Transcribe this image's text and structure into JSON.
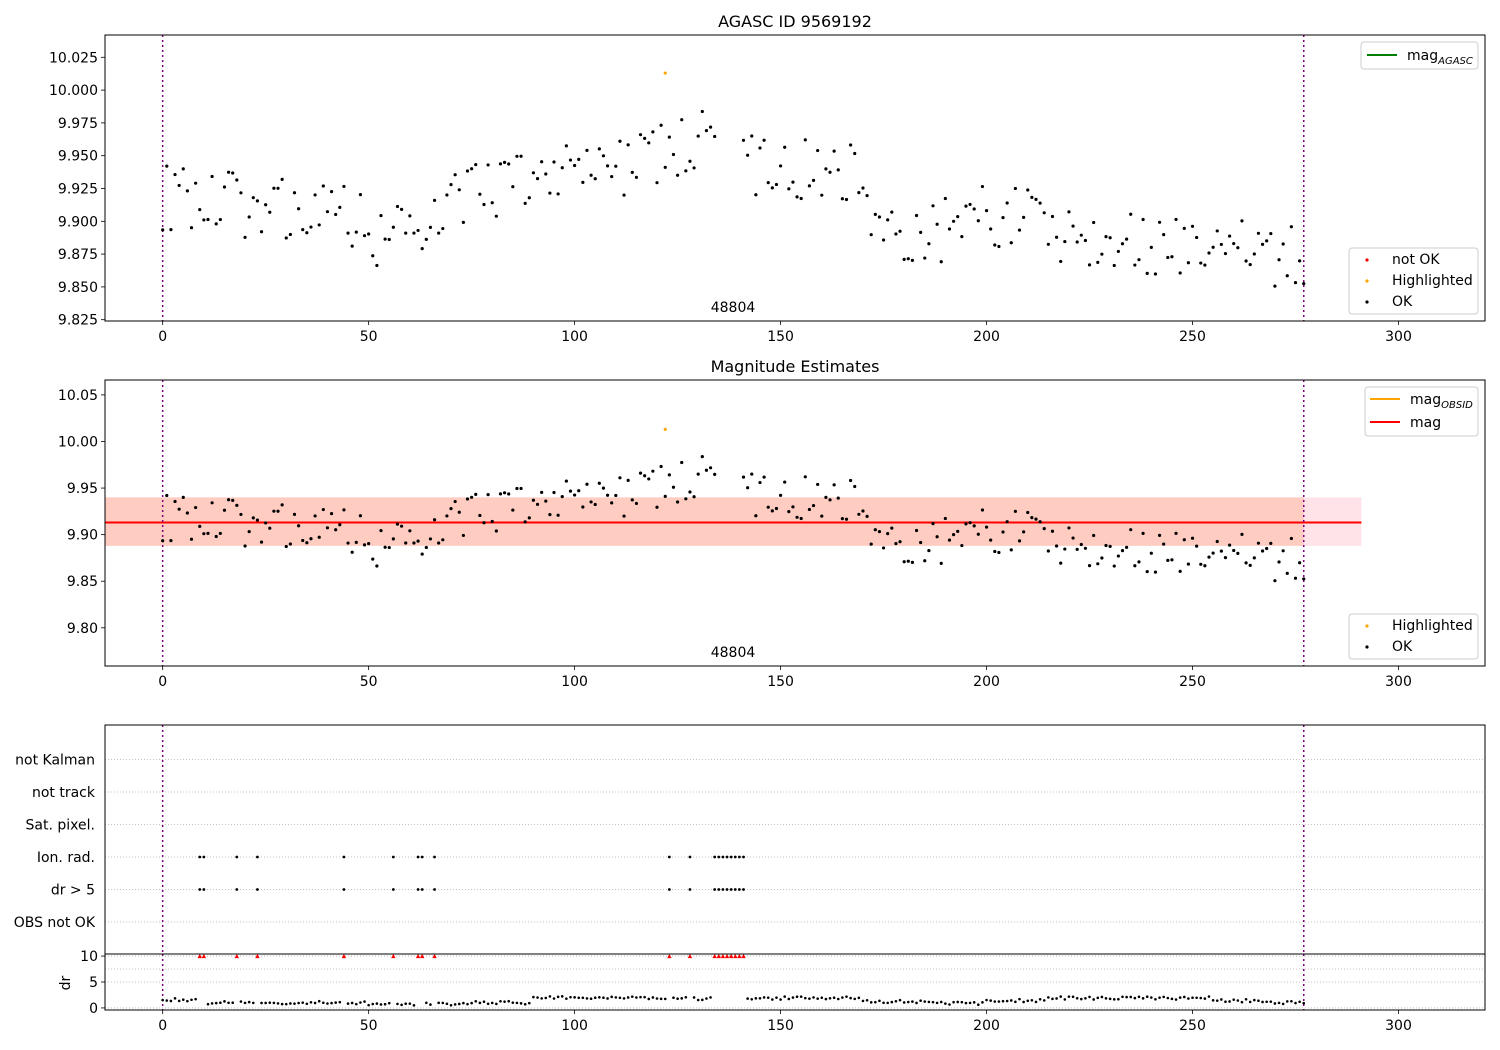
{
  "figure": {
    "title_top": "AGASC ID 9569192",
    "title_middle": "Magnitude Estimates",
    "obsid_label_top": "48804",
    "obsid_label_middle": "48804"
  },
  "legends": {
    "top_lines": [
      "mag",
      "AGASC"
    ],
    "top_points": [
      "not OK",
      "Highlighted",
      "OK"
    ],
    "middle_lines": [
      [
        "mag",
        "OBSID"
      ],
      [
        "mag",
        ""
      ]
    ],
    "middle_points": [
      "Highlighted",
      "OK"
    ]
  },
  "colors": {
    "ok": "#000000",
    "not_ok": "#ff0000",
    "highlighted": "#ffa500",
    "mag_agasc": "#008000",
    "mag_obsid": "#ffa500",
    "mag": "#ff0000",
    "band_outer": "#ffc0cb",
    "band_inner": "#ffa07a",
    "obs_boundary": "#800080",
    "flag_marker": "#ff0000"
  },
  "chart_data": [
    {
      "type": "scatter",
      "title": "AGASC ID 9569192",
      "xlabel": "",
      "ylabel": "",
      "xlim": [
        -14,
        321
      ],
      "ylim": [
        9.824,
        10.042
      ],
      "x_ticks": [
        0,
        50,
        100,
        150,
        200,
        250,
        300
      ],
      "y_ticks": [
        9.825,
        9.85,
        9.875,
        9.9,
        9.925,
        9.95,
        9.975,
        10.0,
        10.025
      ],
      "y_tick_labels": [
        "9.825",
        "9.850",
        "9.875",
        "9.900",
        "9.925",
        "9.950",
        "9.975",
        "10.000",
        "10.025"
      ],
      "grid": false,
      "legend": [
        "upper right",
        "lower right"
      ],
      "observation_boundaries": [
        0,
        277
      ],
      "series": [
        {
          "name": "OK",
          "color": "#000000",
          "x_range": [
            0,
            277
          ],
          "gap": [
            134,
            141
          ]
        },
        {
          "name": "Highlighted",
          "color": "#ffa500",
          "x": [
            122
          ],
          "y": [
            10.013
          ]
        },
        {
          "name": "not OK",
          "color": "#ff0000",
          "x": [],
          "y": []
        }
      ]
    },
    {
      "type": "scatter",
      "title": "Magnitude Estimates",
      "xlabel": "",
      "ylabel": "",
      "xlim": [
        -14,
        321
      ],
      "ylim": [
        9.759,
        10.066
      ],
      "x_ticks": [
        0,
        50,
        100,
        150,
        200,
        250,
        300
      ],
      "y_ticks": [
        9.8,
        9.85,
        9.9,
        9.95,
        10.0,
        10.05
      ],
      "y_tick_labels": [
        "9.80",
        "9.85",
        "9.90",
        "9.95",
        "10.00",
        "10.05"
      ],
      "grid": false,
      "legend": [
        "upper right",
        "lower right"
      ],
      "mag": 9.913,
      "band_outer": [
        9.888,
        9.94
      ],
      "band_inner": [
        9.888,
        9.94
      ],
      "band_x": [
        -14,
        291
      ],
      "observation_boundaries": [
        0,
        277
      ],
      "series": [
        {
          "name": "OK",
          "color": "#000000",
          "x_range": [
            0,
            277
          ],
          "gap": [
            134,
            141
          ]
        },
        {
          "name": "Highlighted",
          "color": "#ffa500",
          "x": [
            122
          ],
          "y": [
            10.013
          ]
        }
      ]
    },
    {
      "type": "scatter",
      "title": "",
      "xlabel": "",
      "ylabel": "",
      "xlim": [
        -14,
        321
      ],
      "categories": [
        "OBS not OK",
        "dr > 5",
        "Ion. rad.",
        "Sat. pixel.",
        "not track",
        "not Kalman"
      ],
      "grid": true,
      "observation_boundaries": [
        0,
        277
      ],
      "flags": {
        "dr > 5": [
          9,
          10,
          18,
          23,
          44,
          56,
          62,
          63,
          66,
          123,
          128,
          134,
          135,
          136,
          137,
          138,
          139,
          140,
          141
        ],
        "Ion. rad.": [
          9,
          10,
          18,
          23,
          44,
          56,
          62,
          63,
          66,
          123,
          128,
          134,
          135,
          136,
          137,
          138,
          139,
          140,
          141
        ]
      }
    },
    {
      "type": "scatter",
      "title": "",
      "xlabel": "",
      "ylabel": "dr",
      "xlim": [
        -14,
        321
      ],
      "ylim": [
        -0.4,
        10.4
      ],
      "x_ticks": [
        0,
        50,
        100,
        150,
        200,
        250,
        300
      ],
      "y_ticks": [
        0,
        5,
        10
      ],
      "y_tick_labels": [
        "0",
        "5",
        "10"
      ],
      "grid": true,
      "observation_boundaries": [
        0,
        277
      ],
      "clipped_marker_value": 10,
      "clipped_x": [
        9,
        10,
        18,
        23,
        44,
        56,
        62,
        63,
        66,
        123,
        128,
        134,
        135,
        136,
        137,
        138,
        139,
        140,
        141
      ],
      "series": [
        {
          "name": "dr",
          "color": "#000000",
          "x_range": [
            0,
            277
          ],
          "gap": [
            134,
            141
          ]
        }
      ]
    }
  ]
}
